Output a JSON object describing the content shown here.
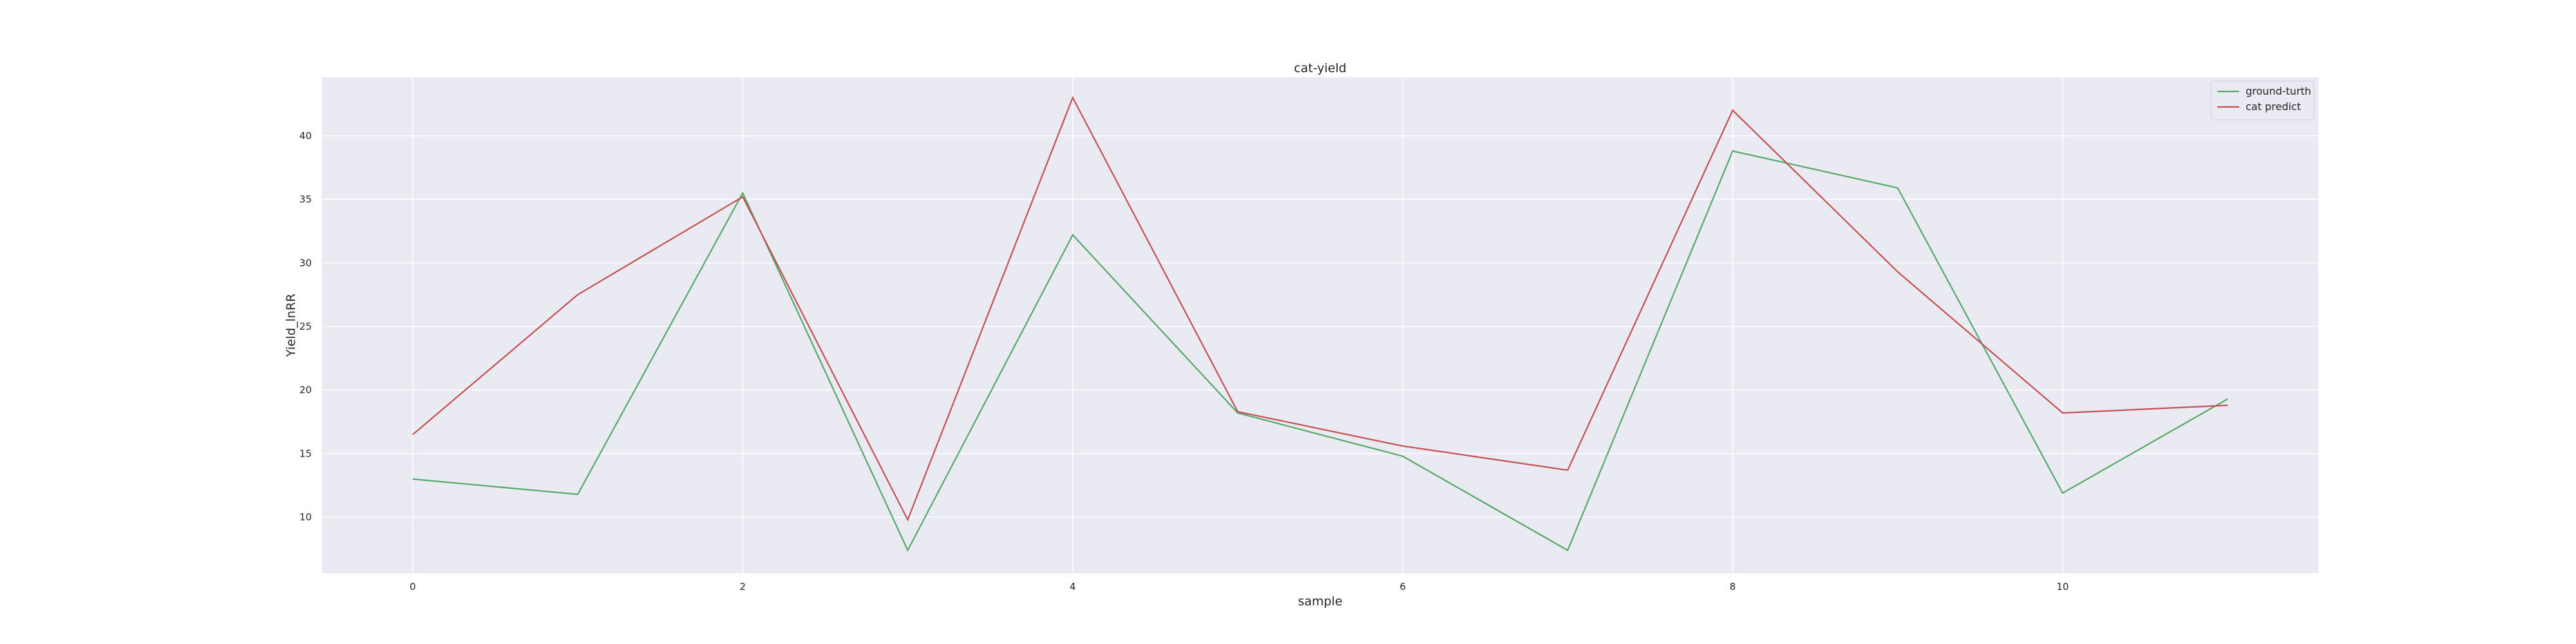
{
  "chart_data": {
    "type": "line",
    "title": "cat-yield",
    "xlabel": "sample",
    "ylabel": "Yield_lnRR",
    "x": [
      0,
      1,
      2,
      3,
      4,
      5,
      6,
      7,
      8,
      9,
      10,
      11
    ],
    "xticks": [
      0,
      2,
      4,
      6,
      8,
      10
    ],
    "yticks": [
      10,
      15,
      20,
      25,
      30,
      35,
      40
    ],
    "xlim": [
      -0.55,
      11.55
    ],
    "ylim": [
      5.6,
      44.6
    ],
    "grid": true,
    "legend_position": "top-right",
    "background_color": "#eaeaf2",
    "series": [
      {
        "name": "ground-turth",
        "color": "#55a868",
        "values": [
          13.0,
          11.8,
          35.5,
          7.4,
          32.2,
          18.2,
          14.8,
          7.4,
          38.8,
          35.9,
          11.9,
          19.3
        ]
      },
      {
        "name": "cat predict",
        "color": "#c44e52",
        "values": [
          16.5,
          27.5,
          35.2,
          9.8,
          43.0,
          18.3,
          15.6,
          13.7,
          42.0,
          29.3,
          18.2,
          18.8
        ]
      }
    ]
  }
}
